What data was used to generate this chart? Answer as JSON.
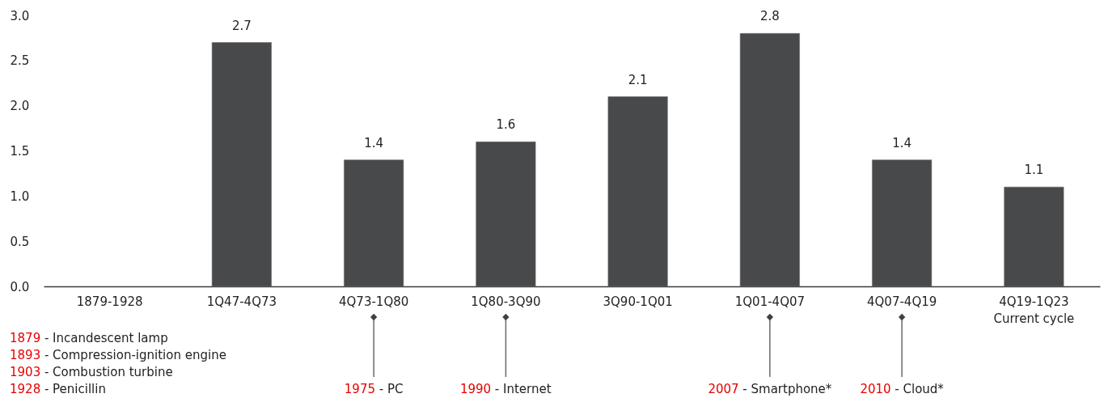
{
  "chart_data": {
    "type": "bar",
    "categories": [
      "1879-1928",
      "1Q47-4Q73",
      "4Q73-1Q80",
      "1Q80-3Q90",
      "3Q90-1Q01",
      "1Q01-4Q07",
      "4Q07-4Q19",
      "4Q19-1Q23\nCurrent cycle"
    ],
    "values": [
      null,
      2.7,
      1.4,
      1.6,
      2.1,
      2.8,
      1.4,
      1.1
    ],
    "color": "#48494b",
    "ylim": [
      0,
      3
    ],
    "yticks": [
      {
        "value": 0,
        "label": "0.0"
      },
      0.5,
      {
        "value": 1,
        "label": "1.0"
      },
      1.5,
      {
        "value": 2,
        "label": "2.0"
      },
      2.5,
      {
        "value": 3,
        "label": "3.0"
      }
    ],
    "grid": false,
    "data_labels": true,
    "annotations": [
      "1879 - Incandescent lamp",
      "1893 - Compression-ignition engine",
      "1903 - Combustion turbine",
      "1928 - Penicillin",
      {
        "text": "1975 - PC",
        "x": "4Q73-1Q80"
      },
      {
        "text": "1990 - Internet",
        "x": "1Q80-3Q90"
      },
      {
        "text": "2007 - Smartphone*",
        "x": "1Q01-4Q07"
      },
      {
        "text": "2010 - Cloud*",
        "x": "4Q07-4Q19"
      }
    ]
  }
}
